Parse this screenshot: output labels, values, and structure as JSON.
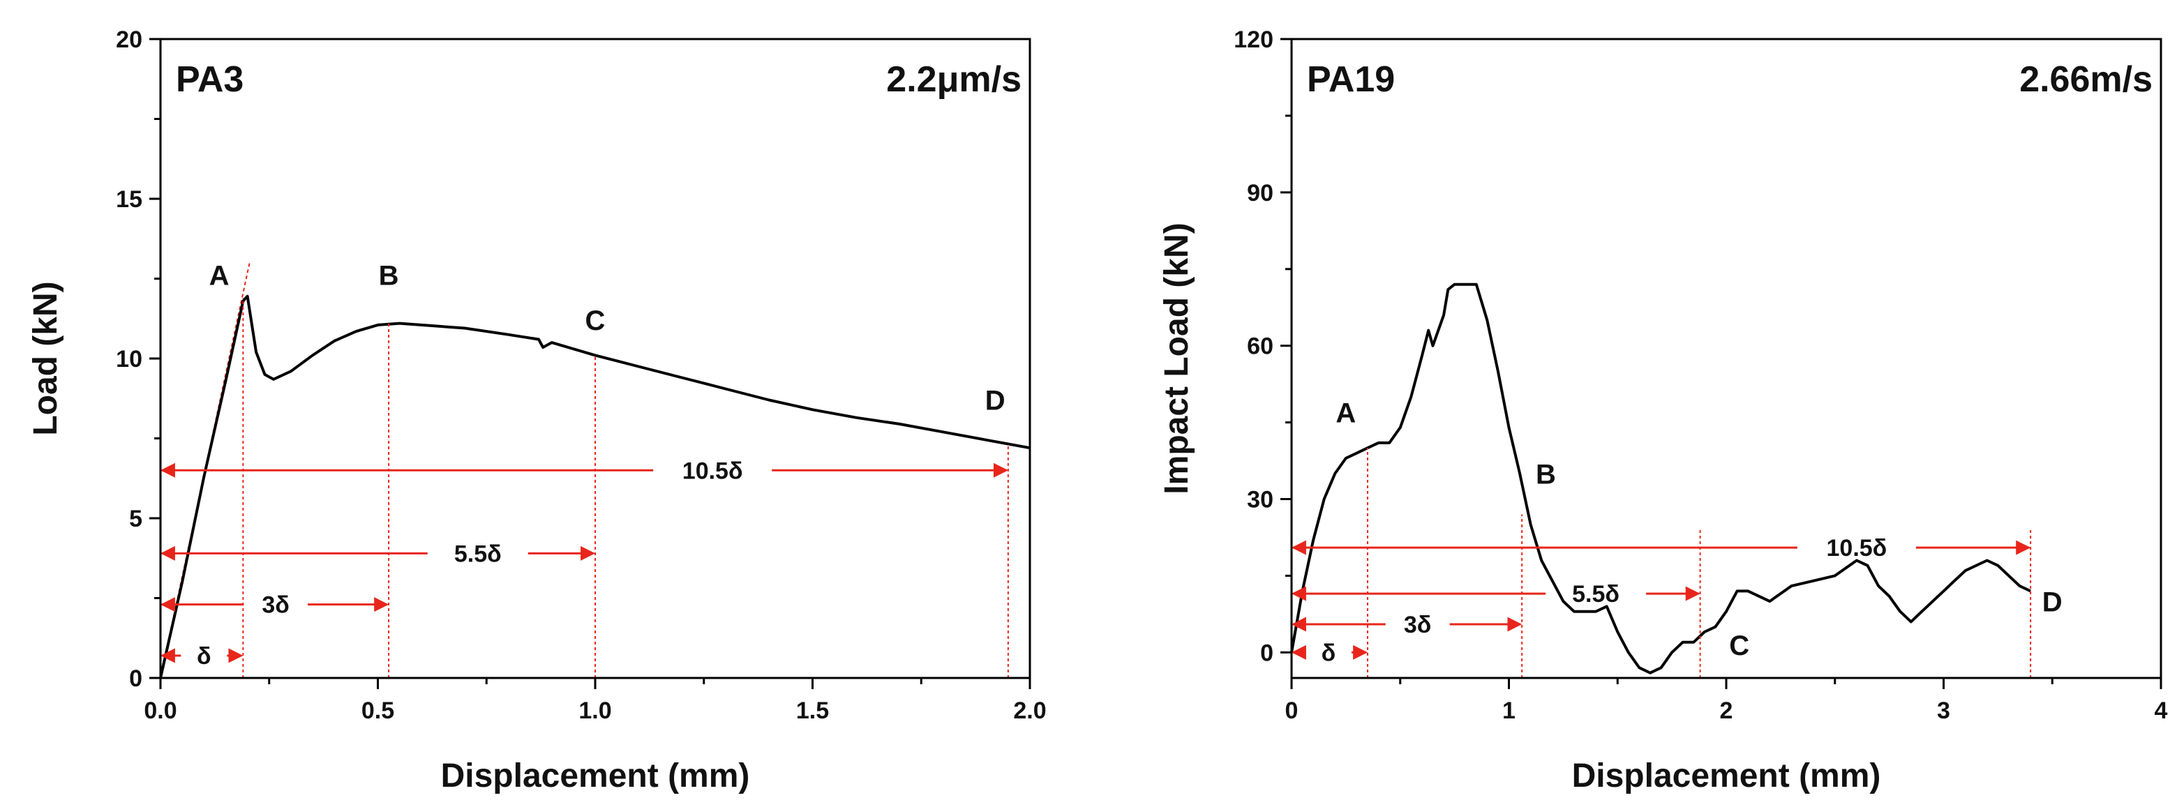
{
  "colors": {
    "curve": "#000000",
    "annotation": "#e8251b",
    "axis": "#000000"
  },
  "chart_data": [
    {
      "type": "line",
      "panel_label": "PA3",
      "rate_label": "2.2μm/s",
      "xlabel": "Displacement (mm)",
      "ylabel": "Load (kN)",
      "xlim": [
        0,
        2
      ],
      "ylim": [
        0,
        20
      ],
      "x_ticks": [
        0,
        0.5,
        1,
        1.5,
        2
      ],
      "x_tick_labels": [
        "0.0",
        "0.5",
        "1.0",
        "1.5",
        "2.0"
      ],
      "y_ticks": [
        0,
        5,
        10,
        15,
        20
      ],
      "y_tick_labels": [
        "0",
        "5",
        "10",
        "15",
        "20"
      ],
      "series": [
        {
          "name": "load",
          "x": [
            0,
            0.05,
            0.1,
            0.15,
            0.19,
            0.2,
            0.22,
            0.24,
            0.26,
            0.3,
            0.35,
            0.4,
            0.45,
            0.5,
            0.55,
            0.6,
            0.7,
            0.8,
            0.87,
            0.88,
            0.9,
            1.0,
            1.1,
            1.2,
            1.3,
            1.4,
            1.5,
            1.6,
            1.7,
            1.8,
            1.9,
            2.0
          ],
          "y": [
            0,
            3.0,
            6.3,
            9.3,
            11.8,
            11.95,
            10.2,
            9.5,
            9.35,
            9.6,
            10.1,
            10.55,
            10.85,
            11.05,
            11.1,
            11.05,
            10.95,
            10.75,
            10.6,
            10.35,
            10.5,
            10.1,
            9.75,
            9.4,
            9.05,
            8.7,
            8.4,
            8.15,
            7.95,
            7.7,
            7.45,
            7.2
          ]
        }
      ],
      "tangent_line": {
        "x": [
          0,
          0.205
        ],
        "y": [
          0,
          13.0
        ]
      },
      "points": [
        {
          "label": "A",
          "x": 0.19,
          "y": 11.9,
          "label_x": 0.135,
          "label_y": 12.3
        },
        {
          "label": "B",
          "x": 0.525,
          "y": 11.1,
          "label_x": 0.525,
          "label_y": 12.3
        },
        {
          "label": "C",
          "x": 1.0,
          "y": 10.1,
          "label_x": 1.0,
          "label_y": 10.9
        },
        {
          "label": "D",
          "x": 1.95,
          "y": 7.3,
          "label_x": 1.92,
          "label_y": 8.4
        }
      ],
      "markers": [
        {
          "x": 0,
          "y_top": 8.9
        },
        {
          "x": 0.19,
          "y_top": 11.9
        },
        {
          "x": 0.525,
          "y_top": 11.1
        },
        {
          "x": 1.0,
          "y_top": 10.1
        },
        {
          "x": 1.95,
          "y_top": 7.3
        }
      ],
      "intervals": [
        {
          "label": "δ",
          "x_from": 0,
          "x_to": 0.19,
          "y": 0.7,
          "label_x": 0.1
        },
        {
          "label": "3δ",
          "x_from": 0,
          "x_to": 0.525,
          "y": 2.3,
          "label_x": 0.265
        },
        {
          "label": "5.5δ",
          "x_from": 0,
          "x_to": 1.0,
          "y": 3.9,
          "label_x": 0.73
        },
        {
          "label": "10.5δ",
          "x_from": 0,
          "x_to": 1.95,
          "y": 6.5,
          "label_x": 1.27
        }
      ]
    },
    {
      "type": "line",
      "panel_label": "PA19",
      "rate_label": "2.66m/s",
      "xlabel": "Displacement (mm)",
      "ylabel": "Impact Load (kN)",
      "xlim": [
        0,
        4
      ],
      "ylim": [
        -5,
        120
      ],
      "x_ticks": [
        0,
        1,
        2,
        3,
        4
      ],
      "x_tick_labels": [
        "0",
        "1",
        "2",
        "3",
        "4"
      ],
      "y_ticks": [
        0,
        30,
        60,
        90,
        120
      ],
      "y_tick_labels": [
        "0",
        "30",
        "60",
        "90",
        "120"
      ],
      "series": [
        {
          "name": "impact load",
          "x": [
            0,
            0.05,
            0.1,
            0.15,
            0.2,
            0.25,
            0.3,
            0.35,
            0.4,
            0.45,
            0.5,
            0.55,
            0.6,
            0.63,
            0.65,
            0.7,
            0.72,
            0.75,
            0.8,
            0.85,
            0.9,
            0.95,
            1.0,
            1.05,
            1.1,
            1.15,
            1.2,
            1.25,
            1.3,
            1.35,
            1.4,
            1.45,
            1.5,
            1.55,
            1.6,
            1.65,
            1.7,
            1.75,
            1.8,
            1.85,
            1.9,
            1.95,
            2.0,
            2.05,
            2.1,
            2.2,
            2.3,
            2.4,
            2.5,
            2.6,
            2.65,
            2.7,
            2.75,
            2.8,
            2.85,
            2.9,
            3.0,
            3.1,
            3.2,
            3.25,
            3.3,
            3.35,
            3.4
          ],
          "y": [
            0,
            12,
            22,
            30,
            35,
            38,
            39,
            40,
            41,
            41,
            44,
            50,
            58,
            63,
            60,
            66,
            71,
            72,
            72,
            72,
            65,
            55,
            44,
            35,
            25,
            18,
            14,
            10,
            8,
            8,
            8,
            9,
            4,
            0,
            -3,
            -4,
            -3,
            0,
            2,
            2,
            4,
            5,
            8,
            12,
            12,
            10,
            13,
            14,
            15,
            18,
            17,
            13,
            11,
            8,
            6,
            8,
            12,
            16,
            18,
            17,
            15,
            13,
            12
          ]
        }
      ],
      "points": [
        {
          "label": "A",
          "x": 0.35,
          "y": 40,
          "label_x": 0.25,
          "label_y": 45
        },
        {
          "label": "B",
          "x": 1.06,
          "y": 27,
          "label_x": 1.17,
          "label_y": 33
        },
        {
          "label": "C",
          "x": 1.88,
          "y": 2,
          "label_x": 2.06,
          "label_y": -0.5
        },
        {
          "label": "D",
          "x": 3.4,
          "y": 12,
          "label_x": 3.5,
          "label_y": 8
        }
      ],
      "markers": [
        {
          "x": 0,
          "y_top": 39
        },
        {
          "x": 0.35,
          "y_top": 40
        },
        {
          "x": 1.06,
          "y_top": 27
        },
        {
          "x": 1.88,
          "y_top": 24
        },
        {
          "x": 3.4,
          "y_top": 24
        }
      ],
      "intervals": [
        {
          "label": "δ",
          "x_from": 0,
          "x_to": 0.35,
          "y": 0,
          "label_x": 0.17
        },
        {
          "label": "3δ",
          "x_from": 0,
          "x_to": 1.06,
          "y": 5.5,
          "label_x": 0.58
        },
        {
          "label": "5.5δ",
          "x_from": 0,
          "x_to": 1.88,
          "y": 11.5,
          "label_x": 1.4
        },
        {
          "label": "10.5δ",
          "x_from": 0,
          "x_to": 3.4,
          "y": 20.5,
          "label_x": 2.6
        }
      ]
    }
  ]
}
